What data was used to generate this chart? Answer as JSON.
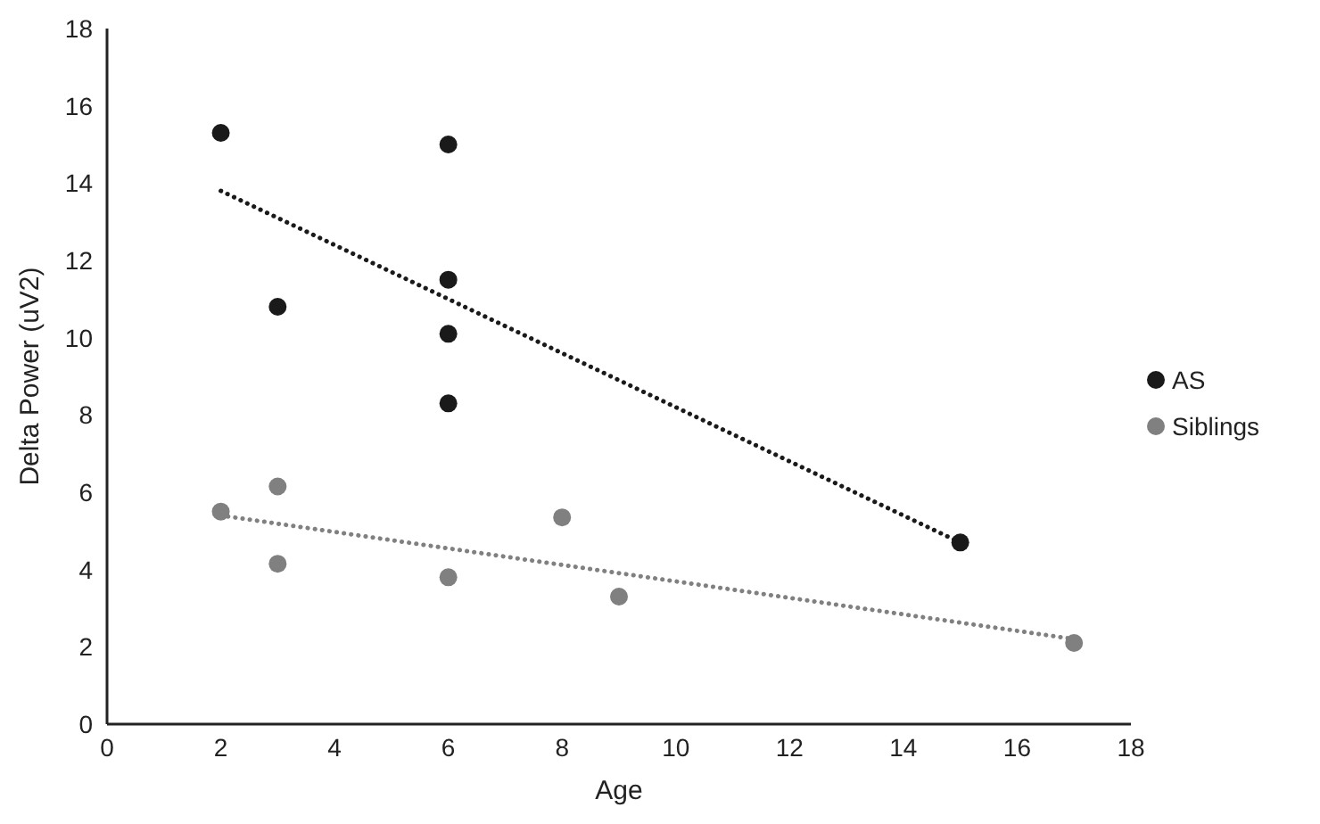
{
  "chart_data": {
    "type": "scatter",
    "xlabel": "Age",
    "ylabel": "Delta Power (uV2)",
    "xlim": [
      0,
      18
    ],
    "xticks": [
      0,
      2,
      4,
      6,
      8,
      10,
      12,
      14,
      16,
      18
    ],
    "ylim": [
      0,
      18
    ],
    "yticks": [
      0,
      2,
      4,
      6,
      8,
      10,
      12,
      14,
      16,
      18
    ],
    "legend": "right",
    "marker": "circle",
    "series": [
      {
        "name": "AS",
        "color": "#1a1a1a",
        "x": [
          2,
          3,
          6,
          6,
          6,
          6,
          15
        ],
        "values": [
          15.3,
          10.8,
          15.0,
          11.5,
          10.1,
          8.3,
          4.7
        ]
      },
      {
        "name": "Siblings",
        "color": "#808080",
        "x": [
          2,
          3,
          3,
          6,
          8,
          9,
          17
        ],
        "values": [
          5.5,
          6.15,
          4.15,
          3.8,
          5.35,
          3.3,
          2.1
        ]
      },
      {
        "type": "line",
        "color": "#1a1a1a",
        "line_style": "dotted",
        "marker": "none",
        "x": [
          2,
          15
        ],
        "values": [
          13.8,
          4.7
        ]
      },
      {
        "type": "line",
        "color": "#808080",
        "line_style": "dotted",
        "marker": "none",
        "x": [
          2,
          17
        ],
        "values": [
          5.4,
          2.2
        ]
      }
    ]
  }
}
